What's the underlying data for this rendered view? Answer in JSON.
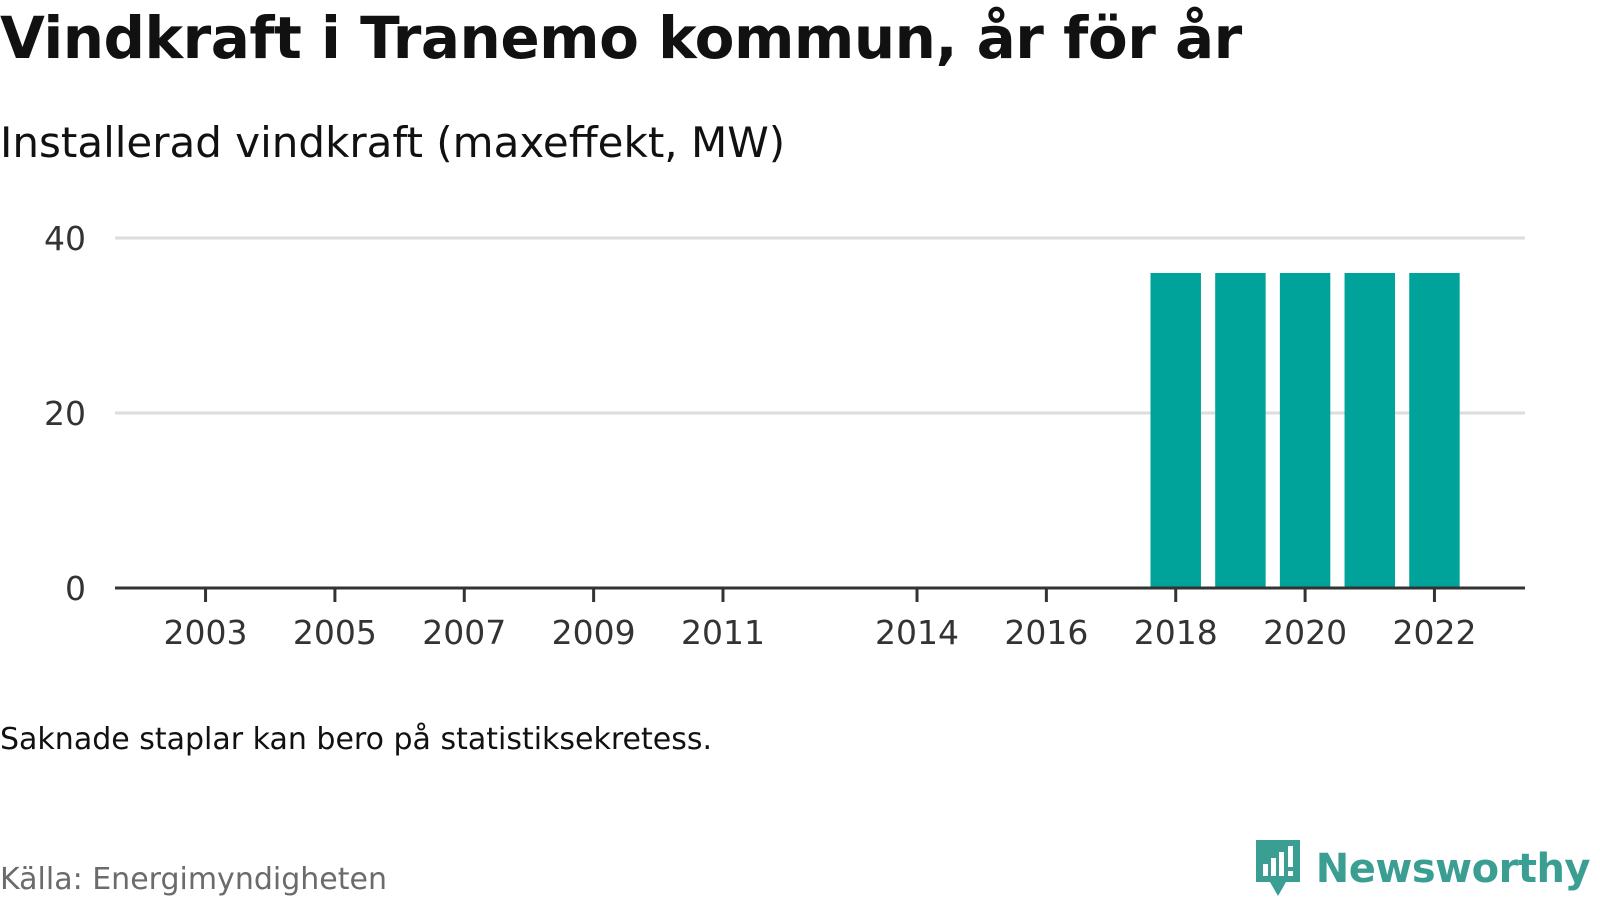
{
  "header": {
    "title": "Vindkraft i Tranemo kommun, år för år",
    "subtitle": "Installerad vindkraft (maxeffekt, MW)"
  },
  "chart_data": {
    "type": "bar",
    "title": "Vindkraft i Tranemo kommun, år för år",
    "subtitle": "Installerad vindkraft (maxeffekt, MW)",
    "xlabel": "",
    "ylabel": "",
    "ylim": [
      0,
      40
    ],
    "yticks": [
      0,
      20,
      40
    ],
    "xticks": [
      2003,
      2005,
      2007,
      2009,
      2011,
      2014,
      2016,
      2018,
      2020,
      2022
    ],
    "xlim": [
      2001.6,
      2023.4
    ],
    "grid": true,
    "bar_color": "#00a39a",
    "categories": [
      2018,
      2019,
      2020,
      2021,
      2022
    ],
    "values": [
      36,
      36,
      36,
      36,
      36
    ]
  },
  "footer": {
    "note": "Saknade staplar kan bero på statistiksekretess.",
    "source": "Källa: Energimyndigheten",
    "brand": "Newsworthy",
    "brand_icon": "newsworthy-logo-icon",
    "brand_color": "#3a9e93"
  }
}
